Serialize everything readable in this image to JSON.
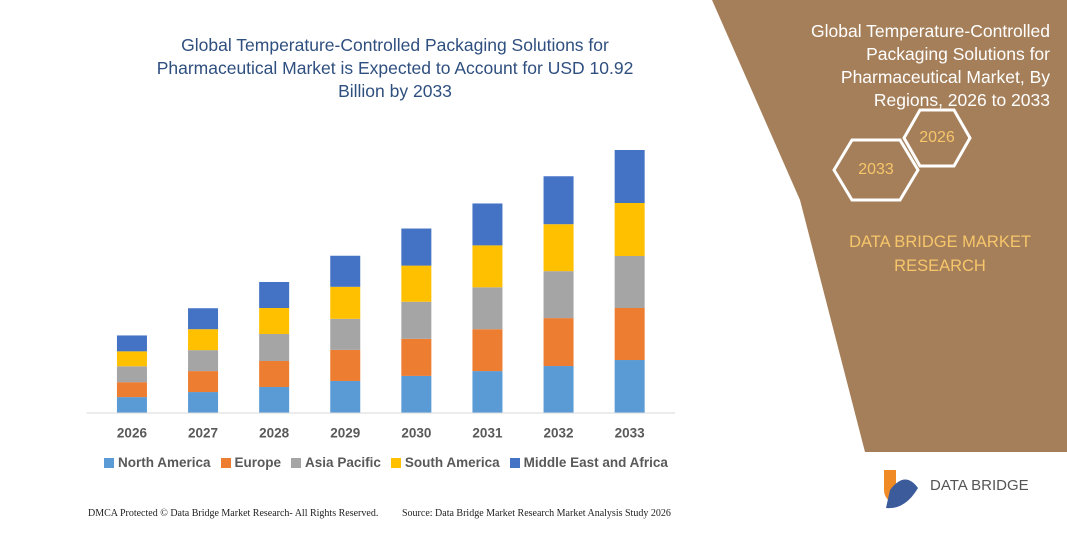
{
  "chart_data": {
    "type": "bar",
    "stacked": true,
    "title": "Global Temperature-Controlled Packaging Solutions for Pharmaceutical Market is Expected to Account for USD 10.92 Billion by 2033",
    "categories": [
      "2026",
      "2027",
      "2028",
      "2029",
      "2030",
      "2031",
      "2032",
      "2033"
    ],
    "series": [
      {
        "name": "North America",
        "color": "#5b9bd5",
        "values": [
          0.66,
          0.87,
          1.08,
          1.33,
          1.54,
          1.74,
          1.95,
          2.2
        ]
      },
      {
        "name": "Europe",
        "color": "#ed7d31",
        "values": [
          0.62,
          0.87,
          1.08,
          1.29,
          1.54,
          1.74,
          1.99,
          2.16
        ]
      },
      {
        "name": "Asia Pacific",
        "color": "#a5a5a5",
        "values": [
          0.66,
          0.87,
          1.12,
          1.29,
          1.54,
          1.74,
          1.95,
          2.16
        ]
      },
      {
        "name": "South America",
        "color": "#ffc000",
        "values": [
          0.62,
          0.87,
          1.08,
          1.33,
          1.5,
          1.74,
          1.95,
          2.2
        ]
      },
      {
        "name": "Middle East and Africa",
        "color": "#4472c4",
        "values": [
          0.66,
          0.87,
          1.08,
          1.29,
          1.54,
          1.74,
          1.99,
          2.2
        ]
      }
    ],
    "ylim": [
      0,
      12
    ]
  },
  "panel": {
    "title": "Global Temperature-Controlled Packaging Solutions for Pharmaceutical Market, By Regions, 2026 to 2033",
    "years": [
      "2026",
      "2033"
    ],
    "brand": "DATA BRIDGE MARKET RESEARCH"
  },
  "logo": "DATA BRIDGE",
  "footer": {
    "left": "DMCA Protected © Data Bridge Market Research- All Rights Reserved.",
    "right": "Source: Data Bridge Market Research Market Analysis Study 2026"
  }
}
